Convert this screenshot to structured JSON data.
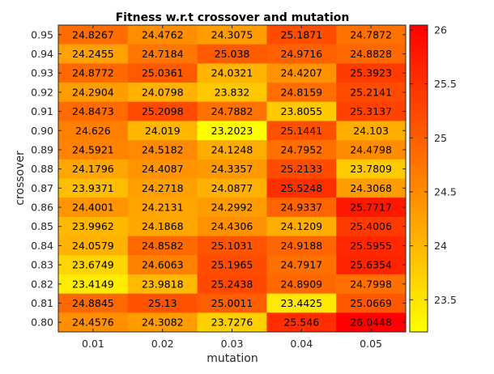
{
  "chart_data": {
    "type": "heatmap",
    "title": "Fitness w.r.t crossover and mutation",
    "xlabel": "mutation",
    "ylabel": "crossover",
    "x": [
      "0.01",
      "0.02",
      "0.03",
      "0.04",
      "0.05"
    ],
    "y": [
      "0.95",
      "0.94",
      "0.93",
      "0.92",
      "0.91",
      "0.90",
      "0.89",
      "0.88",
      "0.87",
      "0.86",
      "0.85",
      "0.84",
      "0.83",
      "0.82",
      "0.81",
      "0.80"
    ],
    "values": [
      [
        "24.8267",
        "24.4762",
        "24.3075",
        "25.1871",
        "24.7872"
      ],
      [
        "24.2455",
        "24.7184",
        "25.038",
        "24.9716",
        "24.8828"
      ],
      [
        "24.8772",
        "25.0361",
        "24.0321",
        "24.4207",
        "25.3923"
      ],
      [
        "24.2904",
        "24.0798",
        "23.832",
        "24.8159",
        "25.2141"
      ],
      [
        "24.8473",
        "25.2098",
        "24.7882",
        "23.8055",
        "25.3137"
      ],
      [
        "24.626",
        "24.019",
        "23.2023",
        "25.1441",
        "24.103"
      ],
      [
        "24.5921",
        "24.5182",
        "24.1248",
        "24.7952",
        "24.4798"
      ],
      [
        "24.1796",
        "24.4087",
        "24.3357",
        "25.2133",
        "23.7809"
      ],
      [
        "23.9371",
        "24.2718",
        "24.0877",
        "25.5248",
        "24.3068"
      ],
      [
        "24.4001",
        "24.2131",
        "24.2992",
        "24.9337",
        "25.7717"
      ],
      [
        "23.9962",
        "24.1868",
        "24.4306",
        "24.1209",
        "25.4006"
      ],
      [
        "24.0579",
        "24.8582",
        "25.1031",
        "24.9188",
        "25.5955"
      ],
      [
        "23.6749",
        "24.6063",
        "25.1965",
        "24.7917",
        "25.6354"
      ],
      [
        "23.4149",
        "23.9818",
        "25.2438",
        "24.8909",
        "24.7998"
      ],
      [
        "24.8845",
        "25.13",
        "25.0011",
        "23.4425",
        "25.0669"
      ],
      [
        "24.4576",
        "24.3082",
        "23.7276",
        "25.546",
        "26.0448"
      ]
    ],
    "colorbar": {
      "min": 23.2023,
      "max": 26.0448,
      "ticks": [
        "23.5",
        "24",
        "24.5",
        "25",
        "25.5",
        "26"
      ],
      "colormap": "autumn (yellow to red)"
    },
    "colors": {
      "low": "#ffff00",
      "high": "#ff0000"
    }
  }
}
